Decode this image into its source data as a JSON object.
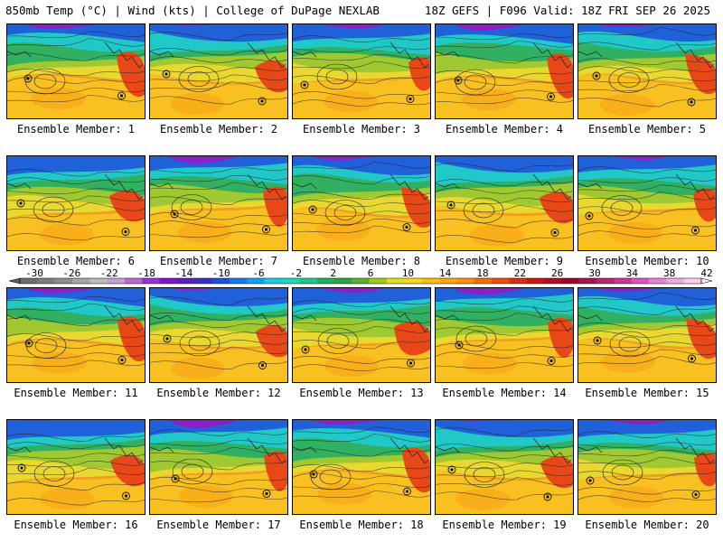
{
  "header": {
    "left_title": "850mb Temp (°C) | Wind (kts) | College of DuPage NEXLAB",
    "right_title": "18Z GEFS | F096 Valid: 18Z FRI SEP 26 2025"
  },
  "members": [
    {
      "label": "Ensemble Member: 1"
    },
    {
      "label": "Ensemble Member: 2"
    },
    {
      "label": "Ensemble Member: 3"
    },
    {
      "label": "Ensemble Member: 4"
    },
    {
      "label": "Ensemble Member: 5"
    },
    {
      "label": "Ensemble Member: 6"
    },
    {
      "label": "Ensemble Member: 7"
    },
    {
      "label": "Ensemble Member: 8"
    },
    {
      "label": "Ensemble Member: 9"
    },
    {
      "label": "Ensemble Member: 10"
    },
    {
      "label": "Ensemble Member: 11"
    },
    {
      "label": "Ensemble Member: 12"
    },
    {
      "label": "Ensemble Member: 13"
    },
    {
      "label": "Ensemble Member: 14"
    },
    {
      "label": "Ensemble Member: 15"
    },
    {
      "label": "Ensemble Member: 16"
    },
    {
      "label": "Ensemble Member: 17"
    },
    {
      "label": "Ensemble Member: 18"
    },
    {
      "label": "Ensemble Member: 19"
    },
    {
      "label": "Ensemble Member: 20"
    }
  ],
  "colorbar": {
    "labels": [
      "-30",
      "-26",
      "-22",
      "-18",
      "-14",
      "-10",
      "-6",
      "-2",
      "2",
      "6",
      "10",
      "14",
      "18",
      "22",
      "26",
      "30",
      "34",
      "38",
      "42"
    ],
    "colors": [
      "#6e6e6e",
      "#7e7e7e",
      "#8e8e8e",
      "#a6a6a6",
      "#bdbdbd",
      "#c8a0d8",
      "#b86ad0",
      "#9b30d0",
      "#7a18c8",
      "#5a20b8",
      "#3a30c0",
      "#2050d8",
      "#1a78e8",
      "#18a0f0",
      "#20c8e8",
      "#20d8c0",
      "#20c890",
      "#20b060",
      "#30a040",
      "#60b030",
      "#a0c820",
      "#e0e020",
      "#f8d818",
      "#f8c010",
      "#f8a810",
      "#f89010",
      "#f07010",
      "#e85010",
      "#d83018",
      "#c81818",
      "#b01020",
      "#980828",
      "#a01850",
      "#b02878",
      "#c838a0",
      "#d858c0",
      "#e880d8",
      "#f0a8e8",
      "#f8d0f0"
    ]
  }
}
